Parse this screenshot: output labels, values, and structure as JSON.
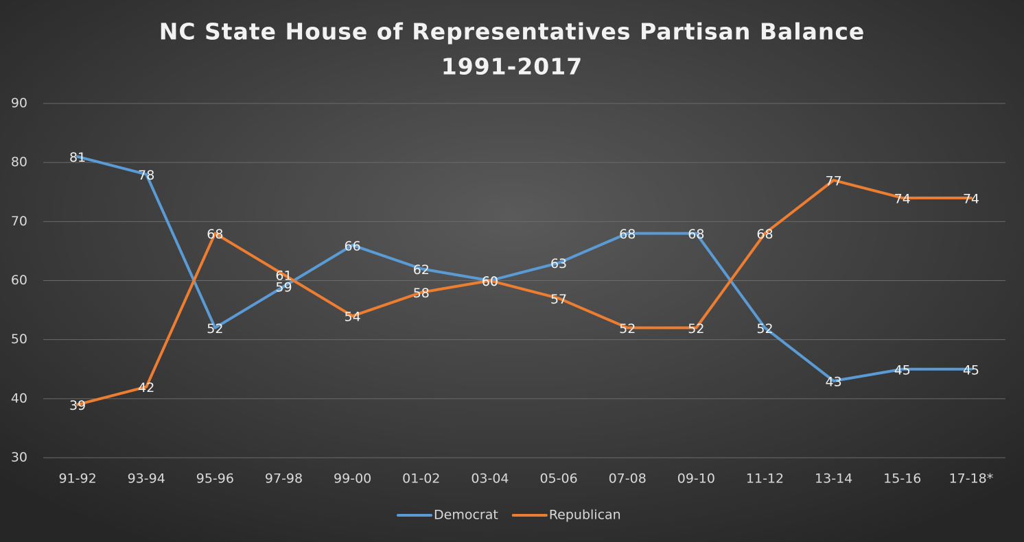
{
  "chart_data": {
    "type": "line",
    "title": [
      "NC State House of Representatives Partisan Balance",
      "1991-2017"
    ],
    "categories": [
      "91-92",
      "93-94",
      "95-96",
      "97-98",
      "99-00",
      "01-02",
      "03-04",
      "05-06",
      "07-08",
      "09-10",
      "11-12",
      "13-14",
      "15-16",
      "17-18*"
    ],
    "series": [
      {
        "name": "Democrat",
        "color": "#5b9bd5",
        "values": [
          81,
          78,
          52,
          59,
          66,
          62,
          60,
          63,
          68,
          68,
          52,
          43,
          45,
          45
        ]
      },
      {
        "name": "Republican",
        "color": "#ed7d31",
        "values": [
          39,
          42,
          68,
          61,
          54,
          58,
          60,
          57,
          52,
          52,
          68,
          77,
          74,
          74
        ]
      }
    ],
    "ylim": [
      30,
      90
    ],
    "yticks": [
      30,
      40,
      50,
      60,
      70,
      80,
      90
    ],
    "grid": true,
    "legend": "bottom"
  }
}
